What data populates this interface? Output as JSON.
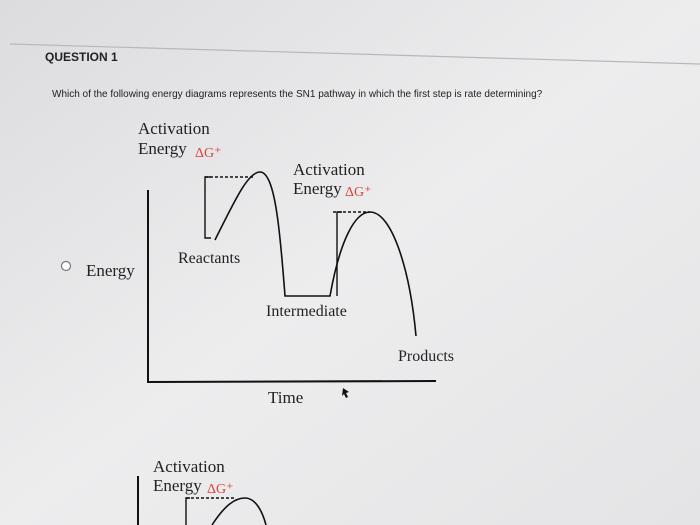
{
  "question": {
    "title": "QUESTION 1",
    "text": "Which of the following energy diagrams represents the SN1 pathway in which the first step is rate determining?"
  },
  "options": [
    {
      "diagram": {
        "y_axis": "Energy",
        "x_axis": "Time",
        "barriers": [
          {
            "line1": "Activation",
            "line2": "Energy",
            "symbol": "ΔG⁺"
          },
          {
            "line1": "Activation",
            "line2": "Energy",
            "symbol": "ΔG⁺"
          }
        ],
        "labels": {
          "reactants": "Reactants",
          "intermediate": "Intermediate",
          "products": "Products"
        }
      }
    },
    {
      "diagram": {
        "barriers": [
          {
            "line1": "Activation",
            "line2": "Energy",
            "symbol": "ΔG⁺"
          }
        ]
      }
    }
  ]
}
